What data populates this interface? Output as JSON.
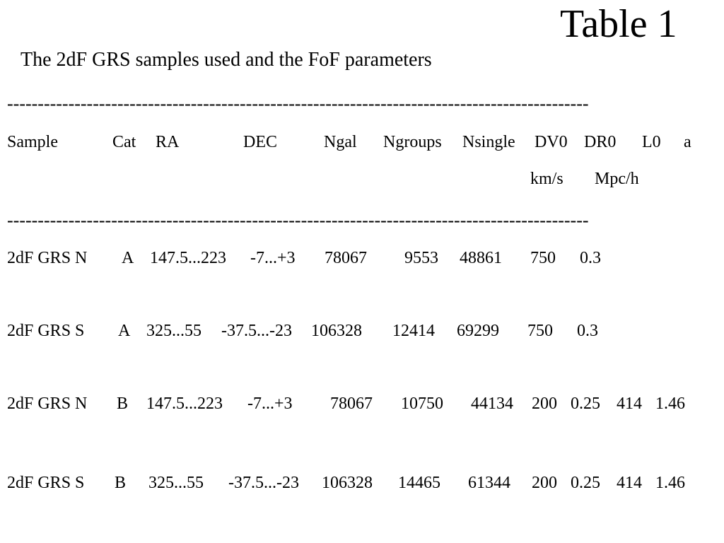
{
  "title": "Table 1",
  "subtitle": "The 2dF GRS samples used and the FoF parameters",
  "rule": "-----------------------------------------------------------------------------------------------",
  "headers": [
    "Sample",
    "Cat",
    "RA",
    "DEC",
    "Ngal",
    "Ngroups",
    "Nsingle",
    "DV0",
    "DR0",
    "L0",
    "a"
  ],
  "units": [
    "km/s",
    "Mpc/h"
  ],
  "rows": [
    [
      "2dF GRS  N",
      "A",
      "147.5...223",
      "-7...+3",
      "78067",
      "9553",
      "48861",
      "750",
      "0.3",
      "",
      ""
    ],
    [
      "2dF GRS  S",
      "A",
      "325...55",
      "-37.5...-23",
      "106328",
      "12414",
      "69299",
      "750",
      "0.3",
      "",
      ""
    ],
    [
      "2dF GRS N",
      "B",
      "147.5...223",
      "-7...+3",
      "78067",
      "10750",
      "44134",
      "200",
      "0.25",
      "414",
      "1.46"
    ],
    [
      "2dF GRS S",
      "B",
      "325...55",
      "-37.5...-23",
      "106328",
      "14465",
      "61344",
      "200",
      "0.25",
      "414",
      "1.46"
    ]
  ]
}
